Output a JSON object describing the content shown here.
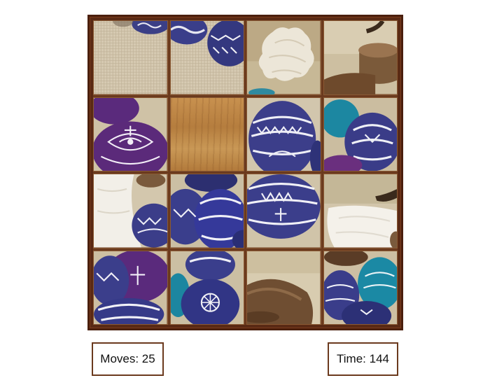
{
  "game": {
    "type": "sliding-puzzle",
    "grid_rows": 4,
    "grid_columns": 4,
    "empty_position": {
      "row": 2,
      "col": 2
    },
    "tiles": [
      {
        "row": 1,
        "col": 1,
        "subject": "linen-with-eggs"
      },
      {
        "row": 1,
        "col": 2,
        "subject": "blue-eggs-on-linen"
      },
      {
        "row": 1,
        "col": 3,
        "subject": "lace-doily"
      },
      {
        "row": 1,
        "col": 4,
        "subject": "wooden-object"
      },
      {
        "row": 2,
        "col": 1,
        "subject": "purple-egg"
      },
      {
        "row": 2,
        "col": 2,
        "subject": "empty-wood"
      },
      {
        "row": 2,
        "col": 3,
        "subject": "blue-patterned-egg"
      },
      {
        "row": 2,
        "col": 4,
        "subject": "teal-and-blue-eggs"
      },
      {
        "row": 3,
        "col": 1,
        "subject": "cloth-and-blue-egg"
      },
      {
        "row": 3,
        "col": 2,
        "subject": "blue-eggs-cluster"
      },
      {
        "row": 3,
        "col": 3,
        "subject": "blue-egg-closeup"
      },
      {
        "row": 3,
        "col": 4,
        "subject": "paper-on-linen"
      },
      {
        "row": 4,
        "col": 1,
        "subject": "purple-and-blue-eggs"
      },
      {
        "row": 4,
        "col": 2,
        "subject": "blue-eggs-flowers"
      },
      {
        "row": 4,
        "col": 3,
        "subject": "wooden-bowl"
      },
      {
        "row": 4,
        "col": 4,
        "subject": "teal-and-blue-eggs-2"
      }
    ]
  },
  "status": {
    "moves_text": "Moves: 25",
    "time_text": "Time: 144",
    "moves": 25,
    "time": 144
  },
  "colors": {
    "frame": "#5a2a14",
    "linen": "#d8ccb5",
    "egg_blue": "#3a3a8c",
    "egg_purple": "#5b2a7a",
    "egg_teal": "#1f8aa0",
    "wood": "#8b6a4a"
  }
}
